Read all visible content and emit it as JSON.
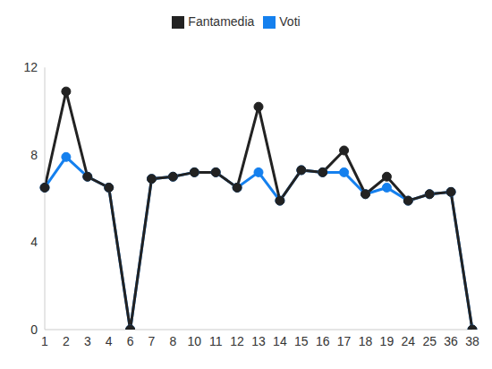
{
  "chart_data": {
    "type": "line",
    "categories": [
      "1",
      "2",
      "3",
      "4",
      "6",
      "7",
      "8",
      "10",
      "11",
      "12",
      "13",
      "14",
      "15",
      "16",
      "17",
      "18",
      "19",
      "24",
      "25",
      "36",
      "38"
    ],
    "series": [
      {
        "name": "Voti",
        "color": "#1580ee",
        "marker": "circle",
        "values": [
          6.5,
          7.9,
          7,
          6.5,
          0,
          6.9,
          7,
          7.2,
          7.2,
          6.5,
          7.2,
          5.9,
          7.3,
          7.2,
          7.2,
          6.2,
          6.5,
          5.9,
          6.2,
          6.3,
          0
        ]
      },
      {
        "name": "Fantamedia",
        "color": "#222222",
        "marker": "circle",
        "values": [
          6.5,
          10.9,
          7,
          6.5,
          0,
          6.9,
          7,
          7.2,
          7.2,
          6.5,
          10.2,
          5.9,
          7.3,
          7.2,
          8.2,
          6.2,
          7,
          5.9,
          6.2,
          6.3,
          0
        ]
      }
    ],
    "ylim": [
      0,
      12
    ],
    "yticks": [
      0,
      4,
      8,
      12
    ],
    "grid": false,
    "legend": "top"
  }
}
